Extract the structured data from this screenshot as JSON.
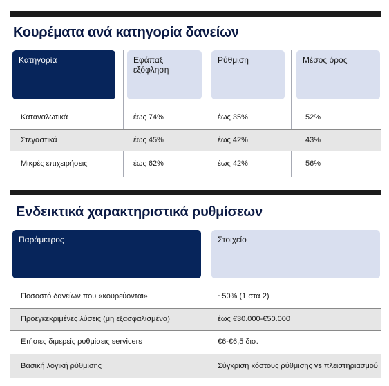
{
  "table1": {
    "title": "Κουρέματα ανά κατηγορία δανείων",
    "headers": [
      "Κατηγορία",
      "Εφάπαξ εξόφληση",
      "Ρύθμιση",
      "Μέσος όρος"
    ],
    "rows": [
      [
        "Καταναλωτικά",
        "έως 74%",
        "έως 35%",
        "52%"
      ],
      [
        "Στεγαστικά",
        "έως 45%",
        "έως 42%",
        "43%"
      ],
      [
        "Μικρές επιχειρήσεις",
        "έως 62%",
        "έως 42%",
        "56%"
      ]
    ]
  },
  "table2": {
    "title": "Ενδεικτικά χαρακτηριστικά ρυθμίσεων",
    "headers": [
      "Παράμετρος",
      "Στοιχείο"
    ],
    "rows": [
      [
        "Ποσοστό δανείων που «κουρεύονται»",
        "~50% (1 στα 2)"
      ],
      [
        "Προεγκεκριμένες λύσεις (μη εξασφαλισμένα)",
        "έως €30.000-€50.000"
      ],
      [
        "Ετήσιες διμερείς ρυθμίσεις servicers",
        "€6-€6,5 δισ."
      ],
      [
        "Βασική λογική ρύθμισης",
        "Σύγκριση κόστους ρύθμισης vs πλειστηριασμού"
      ]
    ]
  }
}
